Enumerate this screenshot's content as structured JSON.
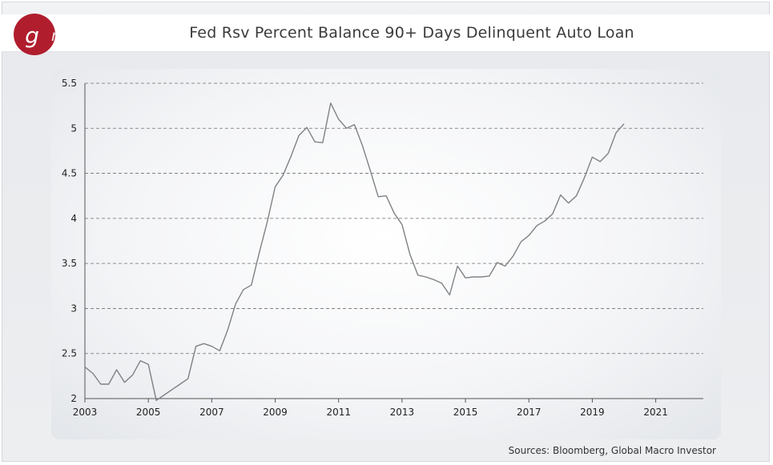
{
  "title": "Fed Rsv Percent Balance 90+ Days Delinquent Auto Loan",
  "logo": {
    "text": "gmi",
    "color": "#b01e2e"
  },
  "source": "Sources: Bloomberg, Global Macro Investor",
  "colors": {
    "line": "#7f8285",
    "grid": "#6f6f6f",
    "axis": "#555555",
    "panel": "#f4f5f7"
  },
  "chart_data": {
    "type": "line",
    "title": "Fed Rsv Percent Balance 90+ Days Delinquent Auto Loan",
    "xlabel": "",
    "ylabel": "",
    "xlim": [
      2003.0,
      2022.5
    ],
    "ylim": [
      2,
      5.5
    ],
    "y_ticks": [
      2,
      2.5,
      3,
      3.5,
      4,
      4.5,
      5,
      5.5
    ],
    "y_tick_labels": [
      "2",
      "2.5",
      "3",
      "3.5",
      "4",
      "4.5",
      "5",
      "5.5"
    ],
    "x_ticks": [
      2003,
      2005,
      2007,
      2009,
      2011,
      2013,
      2015,
      2017,
      2019,
      2021
    ],
    "x_tick_labels": [
      "2003",
      "2005",
      "2007",
      "2009",
      "2011",
      "2013",
      "2015",
      "2017",
      "2019",
      "2021"
    ],
    "grid": true,
    "series": [
      {
        "x": [
          2003.0,
          2003.25,
          2003.5,
          2003.75,
          2004.0,
          2004.25,
          2004.5,
          2004.75,
          2005.0,
          2005.25,
          2005.5,
          2005.75,
          2006.0,
          2006.25,
          2006.5,
          2006.75,
          2007.0,
          2007.25,
          2007.5,
          2007.75,
          2008.0,
          2008.25,
          2008.5,
          2008.75,
          2009.0,
          2009.25,
          2009.5,
          2009.75,
          2010.0,
          2010.25,
          2010.5,
          2010.75,
          2011.0,
          2011.25,
          2011.5,
          2011.75,
          2012.0,
          2012.25,
          2012.5,
          2012.75,
          2013.0,
          2013.25,
          2013.5,
          2013.75,
          2014.0,
          2014.25,
          2014.5,
          2014.75,
          2015.0,
          2015.25,
          2015.5,
          2015.75,
          2016.0,
          2016.25,
          2016.5,
          2016.75,
          2017.0,
          2017.25,
          2017.5,
          2017.75,
          2018.0,
          2018.25,
          2018.5,
          2018.75,
          2019.0,
          2019.25,
          2019.5,
          2019.75,
          2020.0
        ],
        "values": [
          2.35,
          2.28,
          2.16,
          2.16,
          2.32,
          2.18,
          2.26,
          2.42,
          2.38,
          1.98,
          2.04,
          2.1,
          2.16,
          2.22,
          2.58,
          2.61,
          2.58,
          2.53,
          2.76,
          3.05,
          3.21,
          3.26,
          3.62,
          3.96,
          4.35,
          4.48,
          4.69,
          4.92,
          5.01,
          4.85,
          4.84,
          5.28,
          5.1,
          5.0,
          5.04,
          4.81,
          4.53,
          4.24,
          4.25,
          4.06,
          3.93,
          3.6,
          3.37,
          3.35,
          3.32,
          3.28,
          3.15,
          3.47,
          3.34,
          3.35,
          3.35,
          3.36,
          3.51,
          3.47,
          3.58,
          3.74,
          3.81,
          3.92,
          3.97,
          4.05,
          4.26,
          4.17,
          4.25,
          4.45,
          4.68,
          4.63,
          4.72,
          4.95,
          5.05
        ]
      }
    ]
  }
}
